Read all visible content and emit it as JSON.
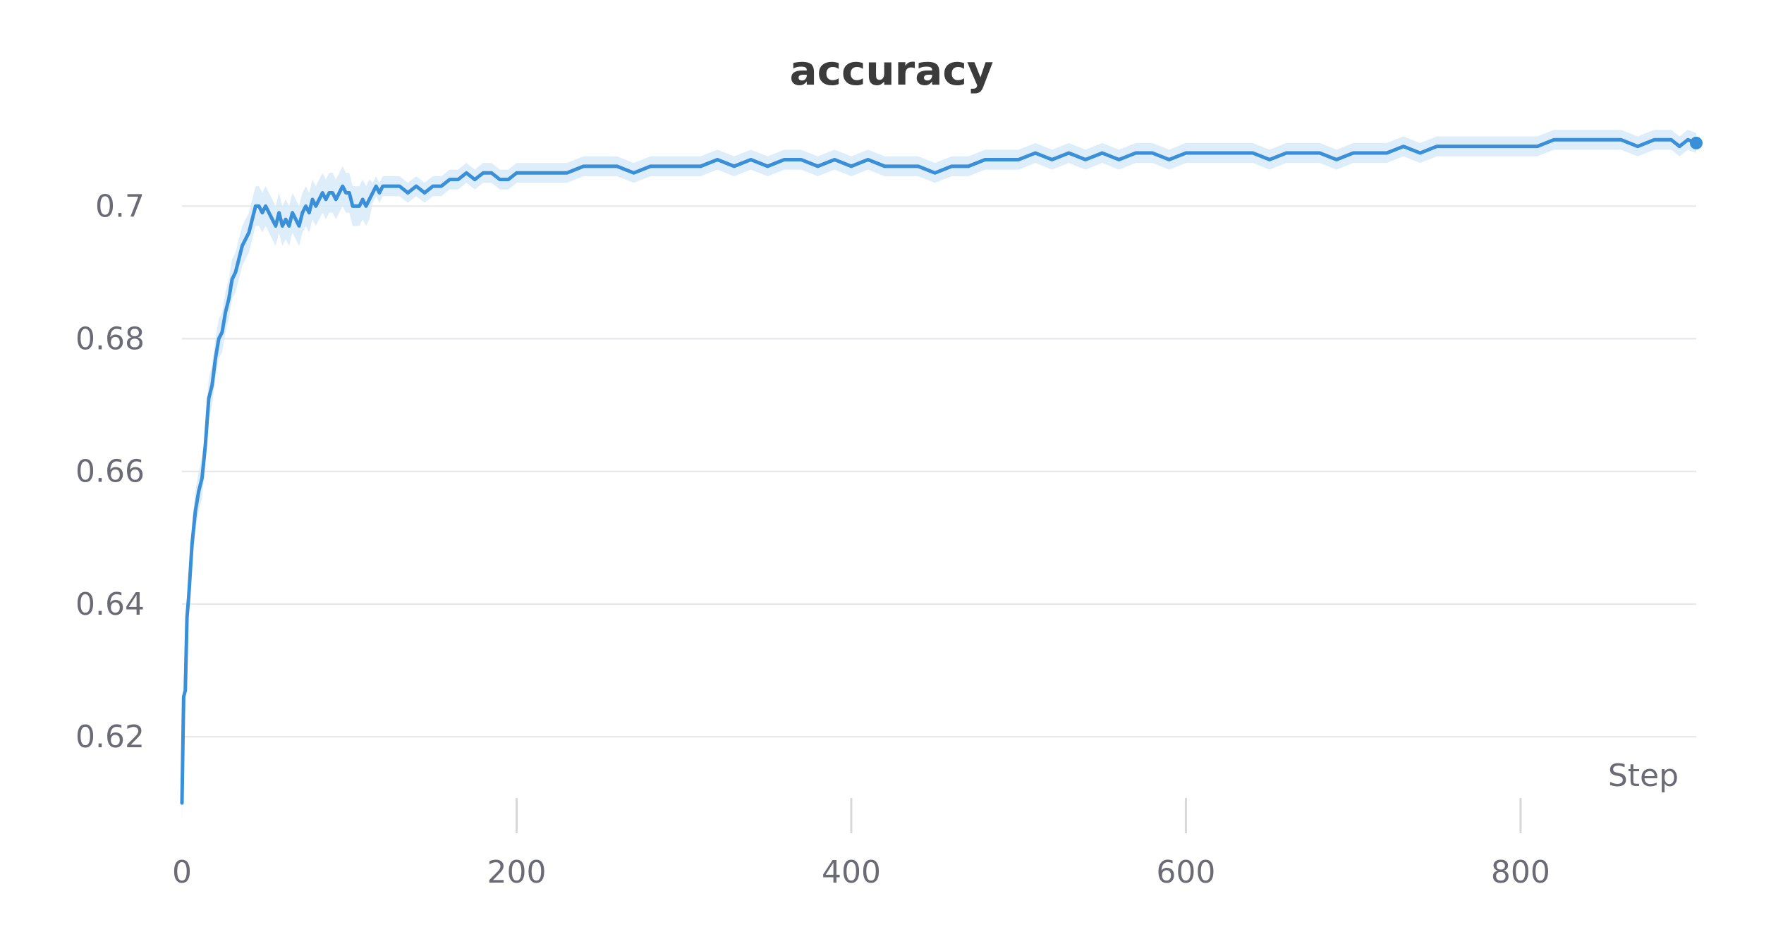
{
  "chart_data": {
    "type": "line",
    "title": "accuracy",
    "xlabel": "Step",
    "ylabel": "",
    "xlim": [
      0,
      905
    ],
    "ylim": [
      0.608,
      0.713
    ],
    "x_ticks": [
      0,
      200,
      400,
      600,
      800
    ],
    "x_tick_labels": [
      "0",
      "200",
      "400",
      "600",
      "800"
    ],
    "y_ticks": [
      0.62,
      0.64,
      0.66,
      0.68,
      0.7
    ],
    "y_tick_labels": [
      "0.62",
      "0.64",
      "0.66",
      "0.68",
      "0.7"
    ],
    "grid": "horizontal",
    "legend": "none",
    "series": [
      {
        "color": "#3a8fd9",
        "band_color": "#d5e8f7",
        "marker_last_point": true,
        "x": [
          0,
          1,
          2,
          3,
          4,
          5,
          6,
          8,
          10,
          12,
          14,
          16,
          18,
          20,
          22,
          24,
          26,
          28,
          30,
          32,
          34,
          36,
          38,
          40,
          42,
          44,
          46,
          48,
          50,
          52,
          54,
          56,
          58,
          60,
          62,
          64,
          66,
          68,
          70,
          72,
          74,
          76,
          78,
          80,
          82,
          84,
          86,
          88,
          90,
          92,
          94,
          96,
          98,
          100,
          102,
          104,
          106,
          108,
          110,
          112,
          114,
          116,
          118,
          120,
          125,
          130,
          135,
          140,
          145,
          150,
          155,
          160,
          165,
          170,
          175,
          180,
          185,
          190,
          195,
          200,
          210,
          220,
          230,
          240,
          250,
          260,
          270,
          280,
          290,
          300,
          310,
          320,
          330,
          340,
          350,
          360,
          370,
          380,
          390,
          400,
          410,
          420,
          430,
          440,
          450,
          460,
          470,
          480,
          490,
          500,
          510,
          520,
          530,
          540,
          550,
          560,
          570,
          580,
          590,
          600,
          610,
          620,
          630,
          640,
          650,
          660,
          670,
          680,
          690,
          700,
          710,
          720,
          730,
          740,
          750,
          760,
          770,
          780,
          790,
          800,
          810,
          820,
          830,
          840,
          850,
          860,
          870,
          880,
          890,
          895,
          900,
          905
        ],
        "y": [
          0.61,
          0.626,
          0.627,
          0.638,
          0.641,
          0.645,
          0.649,
          0.654,
          0.657,
          0.659,
          0.664,
          0.671,
          0.673,
          0.677,
          0.68,
          0.681,
          0.684,
          0.686,
          0.689,
          0.69,
          0.692,
          0.694,
          0.695,
          0.696,
          0.698,
          0.7,
          0.7,
          0.699,
          0.7,
          0.699,
          0.698,
          0.697,
          0.699,
          0.697,
          0.698,
          0.697,
          0.699,
          0.698,
          0.697,
          0.699,
          0.7,
          0.699,
          0.701,
          0.7,
          0.701,
          0.702,
          0.701,
          0.702,
          0.702,
          0.701,
          0.702,
          0.703,
          0.702,
          0.702,
          0.7,
          0.7,
          0.7,
          0.701,
          0.7,
          0.701,
          0.702,
          0.703,
          0.702,
          0.703,
          0.703,
          0.703,
          0.702,
          0.703,
          0.702,
          0.703,
          0.703,
          0.704,
          0.704,
          0.705,
          0.704,
          0.705,
          0.705,
          0.704,
          0.704,
          0.705,
          0.705,
          0.705,
          0.705,
          0.706,
          0.706,
          0.706,
          0.705,
          0.706,
          0.706,
          0.706,
          0.706,
          0.707,
          0.706,
          0.707,
          0.706,
          0.707,
          0.707,
          0.706,
          0.707,
          0.706,
          0.707,
          0.706,
          0.706,
          0.706,
          0.705,
          0.706,
          0.706,
          0.707,
          0.707,
          0.707,
          0.708,
          0.707,
          0.708,
          0.707,
          0.708,
          0.707,
          0.708,
          0.708,
          0.707,
          0.708,
          0.708,
          0.708,
          0.708,
          0.708,
          0.707,
          0.708,
          0.708,
          0.708,
          0.707,
          0.708,
          0.708,
          0.708,
          0.709,
          0.708,
          0.709,
          0.709,
          0.709,
          0.709,
          0.709,
          0.709,
          0.709,
          0.71,
          0.71,
          0.71,
          0.71,
          0.71,
          0.709,
          0.71,
          0.71,
          0.709,
          0.71,
          0.7095
        ]
      }
    ]
  }
}
